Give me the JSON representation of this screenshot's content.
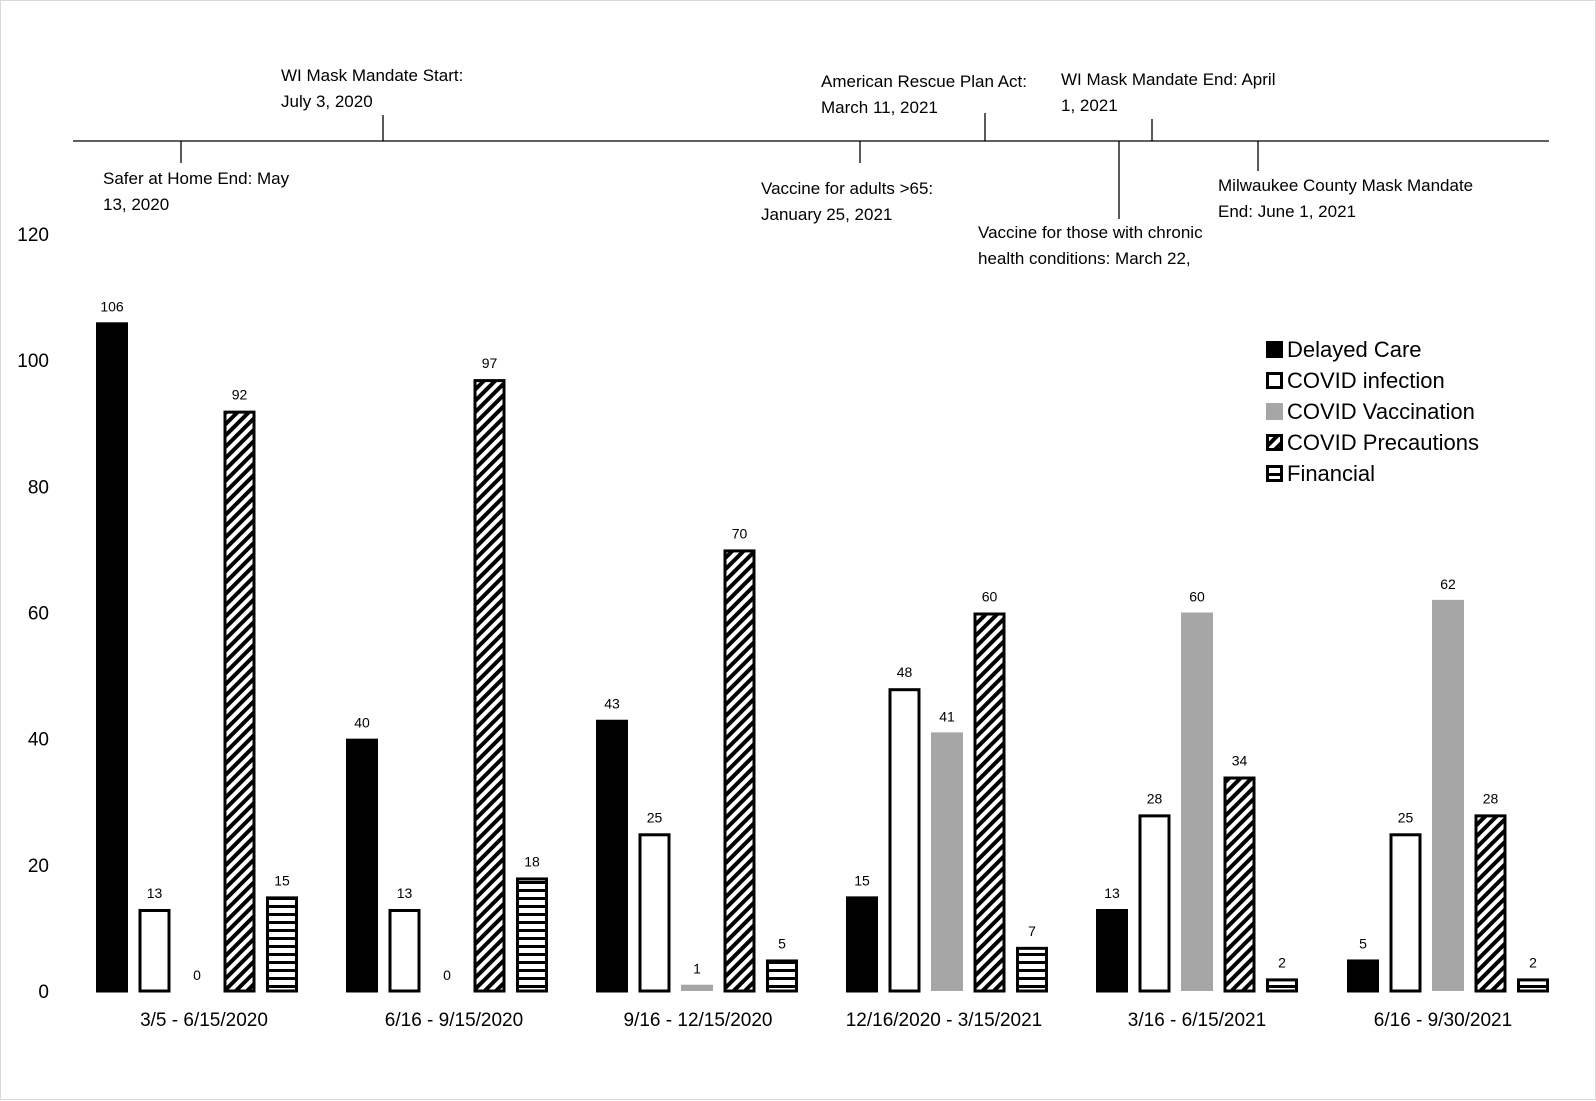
{
  "chart_data": {
    "type": "bar",
    "title": "",
    "xlabel": "",
    "ylabel": "",
    "ylim": [
      0,
      120
    ],
    "yticks": [
      0,
      20,
      40,
      60,
      80,
      100,
      120
    ],
    "grid": false,
    "legend_position": "top-right",
    "categories": [
      "3/5 - 6/15/2020",
      "6/16 - 9/15/2020",
      "9/16 - 12/15/2020",
      "12/16/2020 - 3/15/2021",
      "3/16 - 6/15/2021",
      "6/16 - 9/30/2021"
    ],
    "series": [
      {
        "name": "Delayed Care",
        "pattern": "solid-black",
        "values": [
          106,
          40,
          43,
          15,
          13,
          5
        ]
      },
      {
        "name": "COVID infection",
        "pattern": "white-outline",
        "values": [
          13,
          13,
          25,
          48,
          28,
          25
        ]
      },
      {
        "name": "COVID Vaccination",
        "pattern": "solid-gray",
        "color": "#a6a6a6",
        "values": [
          0,
          0,
          1,
          41,
          60,
          62
        ]
      },
      {
        "name": "COVID Precautions",
        "pattern": "diagonal-stripes",
        "values": [
          92,
          97,
          70,
          60,
          34,
          28
        ]
      },
      {
        "name": "Financial",
        "pattern": "horizontal-stripes",
        "values": [
          15,
          18,
          5,
          7,
          2,
          2
        ]
      }
    ]
  },
  "timeline": {
    "events": [
      {
        "label_lines": [
          "Safer at Home End: May",
          "13, 2020"
        ],
        "side": "below"
      },
      {
        "label_lines": [
          "WI Mask Mandate Start:",
          "July 3, 2020"
        ],
        "side": "above"
      },
      {
        "label_lines": [
          "Vaccine for adults >65:",
          "January 25, 2021"
        ],
        "side": "below"
      },
      {
        "label_lines": [
          "American Rescue Plan Act:",
          "March 11, 2021"
        ],
        "side": "above"
      },
      {
        "label_lines": [
          "Vaccine for those with chronic",
          "health conditions: March 22,"
        ],
        "side": "below"
      },
      {
        "label_lines": [
          "WI Mask Mandate End: April",
          "1, 2021"
        ],
        "side": "above"
      },
      {
        "label_lines": [
          "Milwaukee County Mask Mandate",
          "End: June 1, 2021"
        ],
        "side": "below"
      }
    ]
  }
}
